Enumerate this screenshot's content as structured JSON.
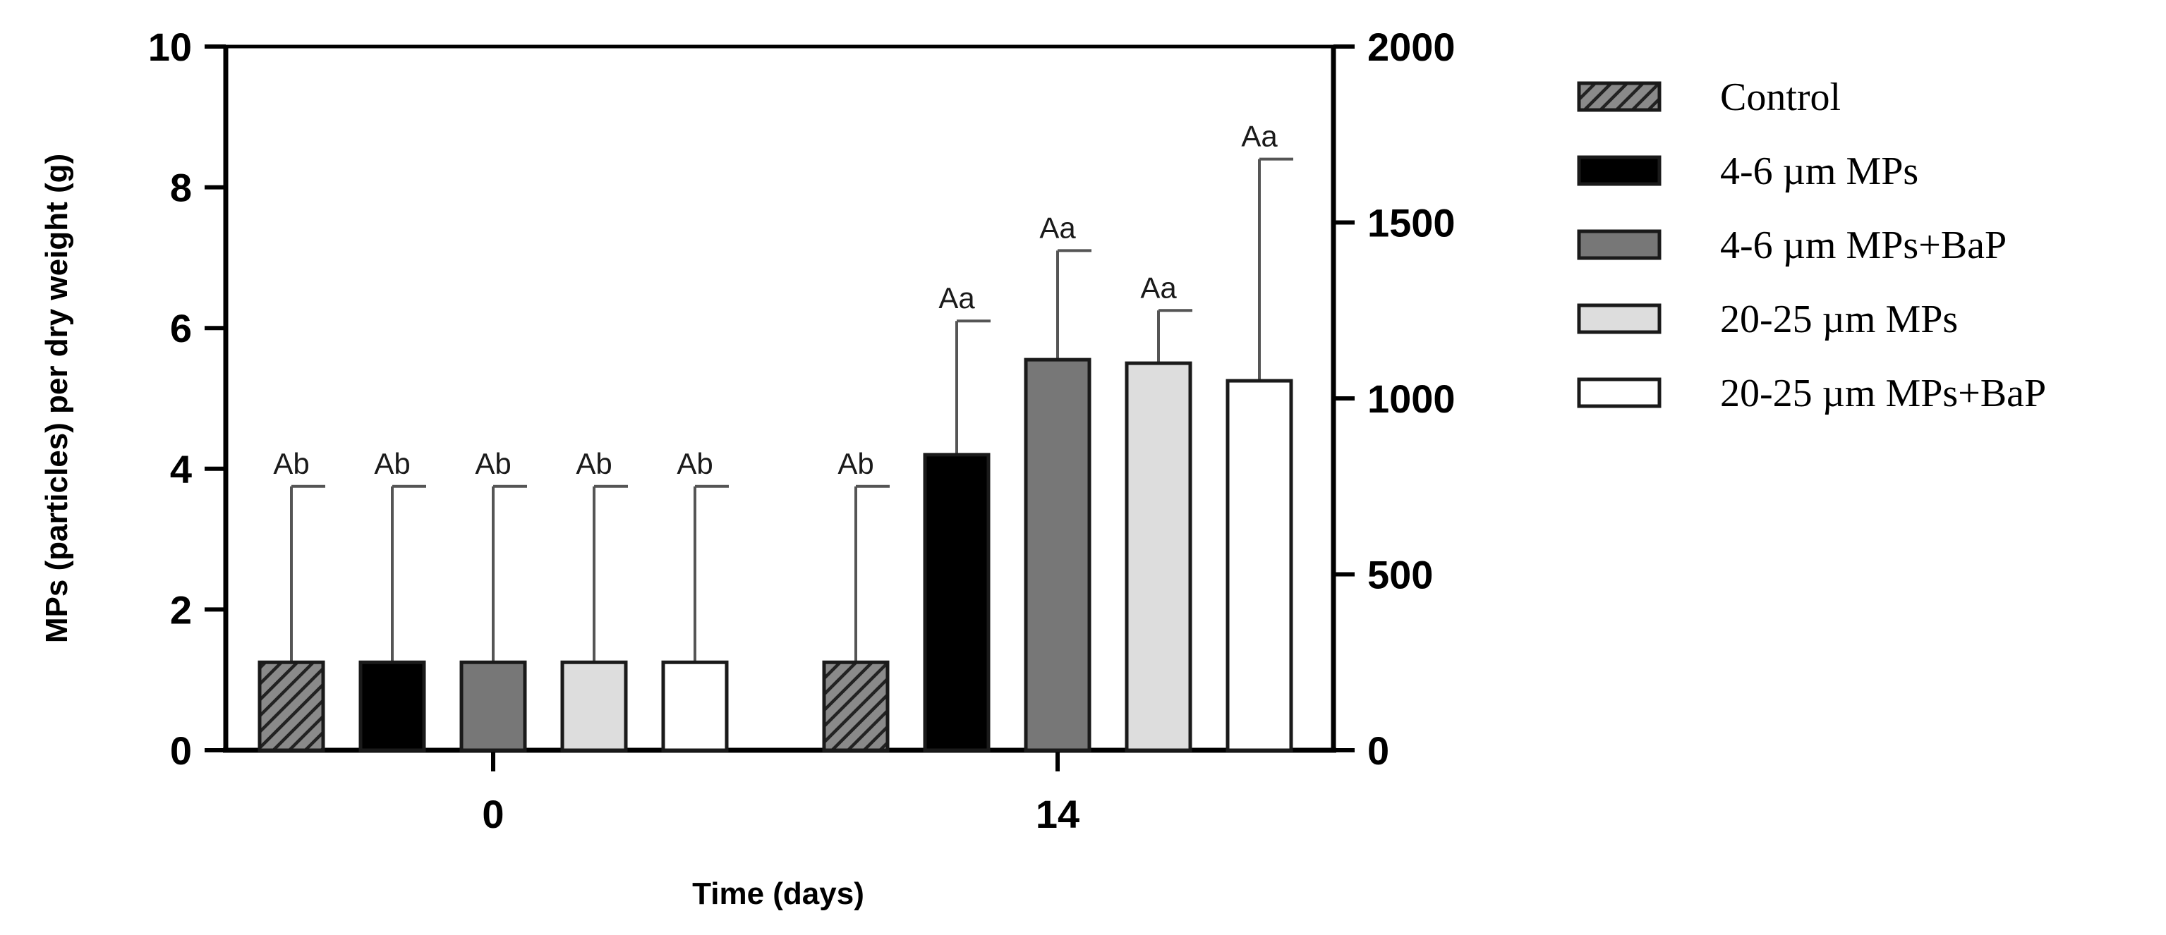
{
  "chart_data": {
    "type": "bar",
    "title": "",
    "xlabel": "Time (days)",
    "ylabel": "MPs (particles) per dry weight (g)",
    "categories": [
      "0",
      "14"
    ],
    "ylim": [
      0,
      10
    ],
    "yticks": [
      "0",
      "2",
      "4",
      "6",
      "8",
      "10"
    ],
    "y2lim": [
      0,
      2000
    ],
    "y2ticks": [
      "0",
      "500",
      "1000",
      "1500",
      "2000"
    ],
    "grid": false,
    "legend_position": "right",
    "colors": {
      "Control": "#5a5a5a",
      "4-6 µm MPs": "#000000",
      "4-6 µm MPs+BaP": "#777777",
      "20-25 µm MPs": "#dddddd",
      "20-25 µm MPs+BaP": "#ffffff"
    },
    "series": [
      {
        "name": "Control",
        "axis": "left",
        "pattern": "hatch",
        "values": [
          1.25,
          1.25
        ],
        "errors": [
          2.5,
          2.5
        ],
        "labels": [
          "Ab",
          "Ab"
        ]
      },
      {
        "name": "4-6 µm MPs",
        "axis": "left",
        "pattern": "solid",
        "values": [
          1.25,
          4.2
        ],
        "errors": [
          2.5,
          1.9
        ],
        "labels": [
          "Ab",
          "Aa"
        ]
      },
      {
        "name": "4-6 µm MPs+BaP",
        "axis": "left",
        "pattern": "solid",
        "values": [
          1.25,
          5.55
        ],
        "errors": [
          2.5,
          1.55
        ],
        "labels": [
          "Ab",
          "Aa"
        ]
      },
      {
        "name": "20-25 µm MPs",
        "axis": "left",
        "pattern": "solid",
        "values": [
          1.25,
          5.5
        ],
        "errors": [
          2.5,
          0.75
        ],
        "labels": [
          "Ab",
          "Aa"
        ]
      },
      {
        "name": "20-25 µm MPs+BaP",
        "axis": "left",
        "pattern": "solid",
        "values": [
          1.25,
          5.25
        ],
        "errors": [
          2.5,
          3.15
        ],
        "labels": [
          "Ab",
          "Aa"
        ]
      }
    ],
    "bar_order": [
      [
        "Control",
        "4-6 µm MPs",
        "4-6 µm MPs+BaP",
        "20-25 µm MPs",
        "20-25 µm MPs+BaP"
      ],
      [
        "Control",
        "4-6 µm MPs",
        "4-6 µm MPs+BaP",
        "20-25 µm MPs",
        "20-25 µm MPs+BaP"
      ]
    ]
  }
}
